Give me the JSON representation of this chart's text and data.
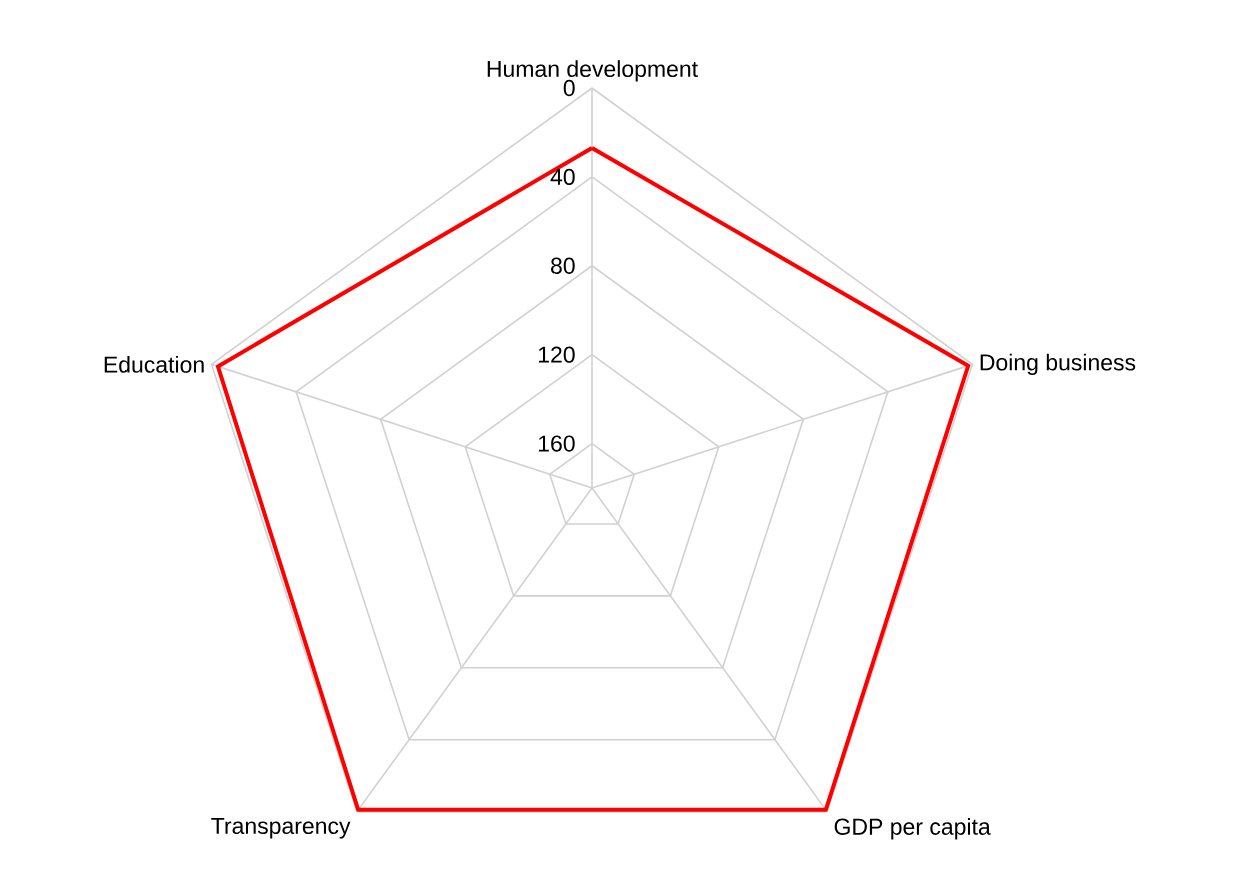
{
  "chart_data": {
    "type": "radar",
    "categories": [
      "Human development",
      "Doing business",
      "GDP per capita",
      "Transparency",
      "Education"
    ],
    "series": [
      {
        "color": "#ff0000",
        "values": [
          27,
          2,
          1,
          1,
          3
        ]
      }
    ],
    "ylim": [
      180,
      0
    ],
    "yticks": [
      0,
      40,
      80,
      120,
      160
    ],
    "grid": true
  }
}
